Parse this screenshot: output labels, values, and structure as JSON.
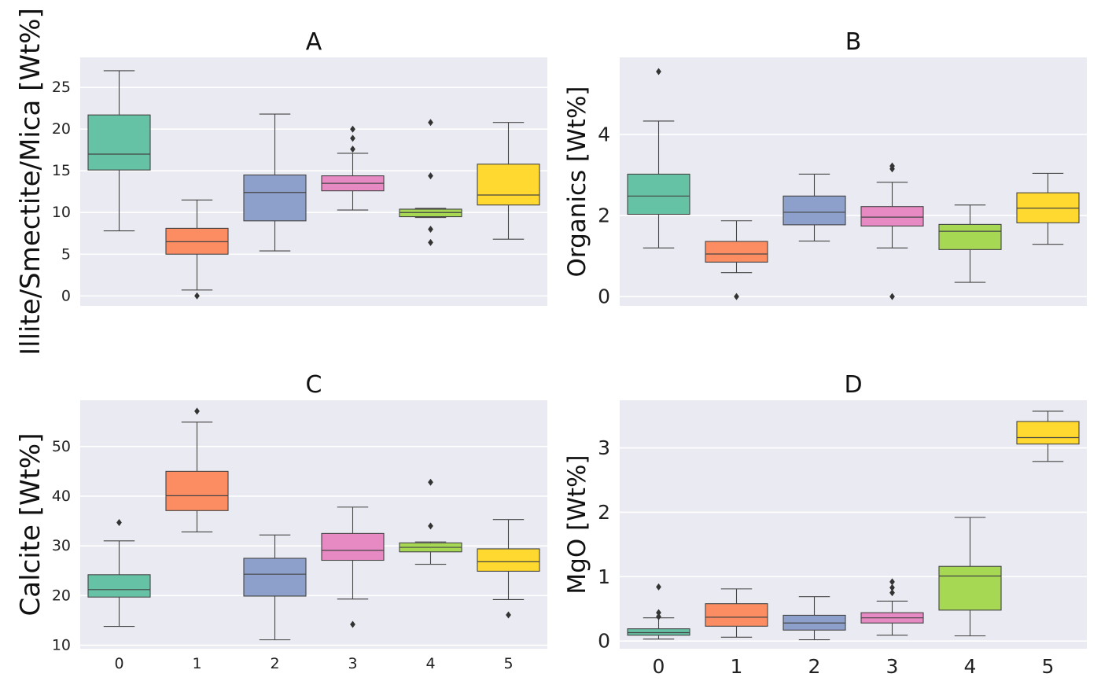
{
  "colors": [
    "#66c2a5",
    "#fc8d62",
    "#8da0cb",
    "#e78ac3",
    "#a6d854",
    "#ffd92f"
  ],
  "chart_data": [
    {
      "id": "A",
      "type": "box",
      "title": "A",
      "ylabel": "Illite/Smectite/Mica [Wt%]",
      "categories": [
        "0",
        "1",
        "2",
        "3",
        "4",
        "5"
      ],
      "yticks": [
        0,
        5,
        10,
        15,
        20,
        25
      ],
      "ytick_labels": [
        "0",
        "5",
        "10",
        "15",
        "20",
        "25"
      ],
      "ylim": [
        -1.2,
        28.6
      ],
      "boxes": [
        {
          "cat": "0",
          "whislo": 7.8,
          "q1": 15.1,
          "med": 17.0,
          "q3": 21.7,
          "whishi": 27.0,
          "fliers": []
        },
        {
          "cat": "1",
          "whislo": 0.7,
          "q1": 5.0,
          "med": 6.5,
          "q3": 8.1,
          "whishi": 11.5,
          "fliers": [
            0.0
          ]
        },
        {
          "cat": "2",
          "whislo": 5.4,
          "q1": 9.0,
          "med": 12.4,
          "q3": 14.5,
          "whishi": 21.8,
          "fliers": []
        },
        {
          "cat": "3",
          "whislo": 10.3,
          "q1": 12.6,
          "med": 13.5,
          "q3": 14.4,
          "whishi": 17.1,
          "fliers": [
            17.6,
            18.9,
            20.0
          ]
        },
        {
          "cat": "4",
          "whislo": 9.4,
          "q1": 9.5,
          "med": 10.0,
          "q3": 10.4,
          "whishi": 10.5,
          "fliers": [
            6.4,
            8.0,
            14.4,
            20.8
          ]
        },
        {
          "cat": "5",
          "whislo": 6.8,
          "q1": 10.9,
          "med": 12.1,
          "q3": 15.8,
          "whishi": 20.8,
          "fliers": []
        }
      ]
    },
    {
      "id": "B",
      "type": "box",
      "title": "B",
      "ylabel": "Organics [Wt%]",
      "categories": [
        "0",
        "1",
        "2",
        "3",
        "4",
        "5"
      ],
      "yticks": [
        0,
        2,
        4
      ],
      "ytick_labels": [
        "0",
        "2",
        "4"
      ],
      "ylim": [
        -0.23,
        5.9
      ],
      "boxes": [
        {
          "cat": "0",
          "whislo": 1.2,
          "q1": 2.03,
          "med": 2.48,
          "q3": 3.02,
          "whishi": 4.33,
          "fliers": [
            5.55
          ]
        },
        {
          "cat": "1",
          "whislo": 0.59,
          "q1": 0.85,
          "med": 1.05,
          "q3": 1.36,
          "whishi": 1.87,
          "fliers": [
            0.0
          ]
        },
        {
          "cat": "2",
          "whislo": 1.37,
          "q1": 1.77,
          "med": 2.08,
          "q3": 2.48,
          "whishi": 3.02,
          "fliers": []
        },
        {
          "cat": "3",
          "whislo": 1.2,
          "q1": 1.74,
          "med": 1.96,
          "q3": 2.22,
          "whishi": 2.82,
          "fliers": [
            0.0,
            3.15,
            3.22
          ]
        },
        {
          "cat": "4",
          "whislo": 0.35,
          "q1": 1.16,
          "med": 1.61,
          "q3": 1.78,
          "whishi": 2.26,
          "fliers": []
        },
        {
          "cat": "5",
          "whislo": 1.29,
          "q1": 1.82,
          "med": 2.18,
          "q3": 2.56,
          "whishi": 3.04,
          "fliers": []
        }
      ]
    },
    {
      "id": "C",
      "type": "box",
      "title": "C",
      "ylabel": "Calcite [Wt%]",
      "categories": [
        "0",
        "1",
        "2",
        "3",
        "4",
        "5"
      ],
      "yticks": [
        10,
        20,
        30,
        40,
        50
      ],
      "ytick_labels": [
        "10",
        "20",
        "30",
        "40",
        "50"
      ],
      "ylim": [
        9.3,
        59.3
      ],
      "boxes": [
        {
          "cat": "0",
          "whislo": 13.8,
          "q1": 19.7,
          "med": 21.2,
          "q3": 24.2,
          "whishi": 31.0,
          "fliers": [
            34.7
          ]
        },
        {
          "cat": "1",
          "whislo": 32.8,
          "q1": 37.1,
          "med": 40.1,
          "q3": 45.0,
          "whishi": 54.9,
          "fliers": [
            57.1
          ]
        },
        {
          "cat": "2",
          "whislo": 11.1,
          "q1": 19.9,
          "med": 24.3,
          "q3": 27.5,
          "whishi": 32.2,
          "fliers": []
        },
        {
          "cat": "3",
          "whislo": 19.3,
          "q1": 27.1,
          "med": 29.1,
          "q3": 32.5,
          "whishi": 37.8,
          "fliers": [
            14.2
          ]
        },
        {
          "cat": "4",
          "whislo": 26.3,
          "q1": 28.8,
          "med": 29.7,
          "q3": 30.6,
          "whishi": 30.8,
          "fliers": [
            34.0,
            42.8
          ]
        },
        {
          "cat": "5",
          "whislo": 19.2,
          "q1": 24.9,
          "med": 26.8,
          "q3": 29.4,
          "whishi": 35.3,
          "fliers": [
            16.1
          ]
        }
      ]
    },
    {
      "id": "D",
      "type": "box",
      "title": "D",
      "ylabel": "MgO [Wt%]",
      "categories": [
        "0",
        "1",
        "2",
        "3",
        "4",
        "5"
      ],
      "yticks": [
        0,
        1,
        2,
        3
      ],
      "ytick_labels": [
        "0",
        "1",
        "2",
        "3"
      ],
      "ylim": [
        -0.12,
        3.74
      ],
      "boxes": [
        {
          "cat": "0",
          "whislo": 0.03,
          "q1": 0.09,
          "med": 0.13,
          "q3": 0.19,
          "whishi": 0.36,
          "fliers": [
            0.38,
            0.44,
            0.84
          ]
        },
        {
          "cat": "1",
          "whislo": 0.06,
          "q1": 0.23,
          "med": 0.37,
          "q3": 0.58,
          "whishi": 0.81,
          "fliers": []
        },
        {
          "cat": "2",
          "whislo": 0.02,
          "q1": 0.17,
          "med": 0.28,
          "q3": 0.4,
          "whishi": 0.69,
          "fliers": []
        },
        {
          "cat": "3",
          "whislo": 0.09,
          "q1": 0.28,
          "med": 0.36,
          "q3": 0.44,
          "whishi": 0.62,
          "fliers": [
            0.75,
            0.83,
            0.92
          ]
        },
        {
          "cat": "4",
          "whislo": 0.08,
          "q1": 0.48,
          "med": 1.01,
          "q3": 1.16,
          "whishi": 1.92,
          "fliers": []
        },
        {
          "cat": "5",
          "whislo": 2.79,
          "q1": 3.06,
          "med": 3.16,
          "q3": 3.41,
          "whishi": 3.57,
          "fliers": []
        }
      ]
    }
  ]
}
